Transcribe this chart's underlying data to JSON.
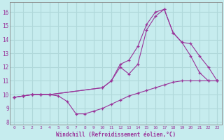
{
  "background_color": "#c6ecee",
  "grid_color": "#b0d8da",
  "line_color": "#993399",
  "xlabel": "Windchill (Refroidissement éolien,°C)",
  "xlim": [
    -0.5,
    23.5
  ],
  "ylim": [
    7.8,
    16.7
  ],
  "yticks": [
    8,
    9,
    10,
    11,
    12,
    13,
    14,
    15,
    16
  ],
  "xticks": [
    0,
    1,
    2,
    3,
    4,
    5,
    6,
    7,
    8,
    9,
    10,
    11,
    12,
    13,
    14,
    15,
    16,
    17,
    18,
    19,
    20,
    21,
    22,
    23
  ],
  "line1_x": [
    0,
    1,
    2,
    3,
    4,
    5,
    6,
    7,
    8,
    9,
    10,
    11,
    12,
    13,
    14,
    15,
    16,
    17,
    18,
    19,
    20,
    21,
    22,
    23
  ],
  "line1_y": [
    9.8,
    9.9,
    10.0,
    10.0,
    10.0,
    9.9,
    9.5,
    8.6,
    8.6,
    8.8,
    9.0,
    9.3,
    9.6,
    9.9,
    10.1,
    10.3,
    10.5,
    10.7,
    10.9,
    11.0,
    11.0,
    11.0,
    11.0,
    11.0
  ],
  "line2_x": [
    0,
    1,
    2,
    3,
    4,
    10,
    11,
    12,
    13,
    14,
    15,
    16,
    17,
    18,
    19,
    20,
    21,
    22,
    23
  ],
  "line2_y": [
    9.8,
    9.9,
    10.0,
    10.0,
    10.0,
    10.5,
    11.0,
    12.2,
    12.5,
    13.5,
    15.1,
    16.0,
    16.2,
    14.5,
    13.8,
    13.7,
    12.8,
    12.0,
    11.0
  ],
  "line3_x": [
    0,
    1,
    2,
    3,
    4,
    10,
    11,
    12,
    13,
    14,
    15,
    16,
    17,
    18,
    19,
    20,
    21,
    22,
    23
  ],
  "line3_y": [
    9.8,
    9.9,
    10.0,
    10.0,
    10.0,
    10.5,
    11.0,
    12.0,
    11.5,
    12.2,
    14.7,
    15.7,
    16.2,
    14.5,
    13.8,
    12.8,
    11.6,
    11.0,
    11.0
  ]
}
